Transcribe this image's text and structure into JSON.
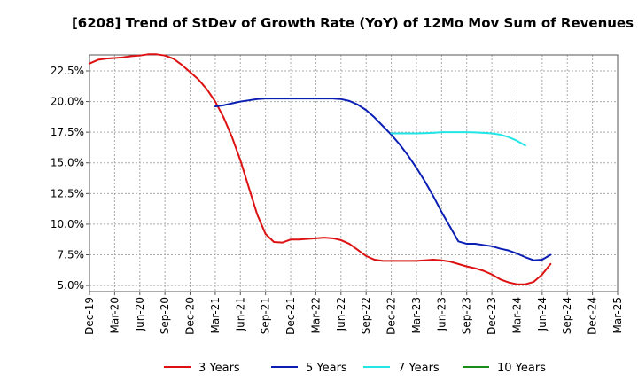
{
  "chart_data": {
    "type": "line",
    "title": "[6208]  Trend of StDev of Growth Rate (YoY) of 12Mo Mov Sum of Revenues",
    "xlabel": "",
    "ylabel": "",
    "ylim": [
      4.5,
      23.8
    ],
    "y_ticks": [
      5.0,
      7.5,
      10.0,
      12.5,
      15.0,
      17.5,
      20.0,
      22.5
    ],
    "y_tick_labels": [
      "5.0%",
      "7.5%",
      "10.0%",
      "12.5%",
      "15.0%",
      "17.5%",
      "20.0%",
      "22.5%"
    ],
    "x_tick_labels": [
      "Dec-19",
      "Mar-20",
      "Jun-20",
      "Sep-20",
      "Dec-20",
      "Mar-21",
      "Jun-21",
      "Sep-21",
      "Dec-21",
      "Mar-22",
      "Jun-22",
      "Sep-22",
      "Dec-22",
      "Mar-23",
      "Jun-23",
      "Sep-23",
      "Dec-23",
      "Mar-24",
      "Jun-24",
      "Sep-24",
      "Dec-24",
      "Mar-25"
    ],
    "grid": true,
    "legend_position": "bottom",
    "series": [
      {
        "name": "3 Years",
        "color": "#dd1111",
        "start_index": 0,
        "values": [
          23.1,
          23.4,
          23.5,
          23.55,
          23.6,
          23.7,
          23.75,
          23.85,
          23.85,
          23.75,
          23.5,
          23.0,
          22.4,
          21.8,
          21.0,
          20.0,
          18.7,
          17.1,
          15.2,
          13.0,
          10.8,
          9.2,
          8.55,
          8.5,
          8.75,
          8.75,
          8.8,
          8.85,
          8.9,
          8.85,
          8.7,
          8.4,
          7.9,
          7.4,
          7.1,
          7.0,
          7.0,
          7.0,
          7.0,
          7.0,
          7.05,
          7.1,
          7.05,
          6.95,
          6.75,
          6.55,
          6.4,
          6.2,
          5.9,
          5.5,
          5.25,
          5.1,
          5.1,
          5.3,
          5.9,
          6.75
        ]
      },
      {
        "name": "5 Years",
        "color": "#0a1eb4",
        "start_index": 15,
        "values": [
          19.6,
          19.7,
          19.85,
          20.0,
          20.1,
          20.2,
          20.25,
          20.25,
          20.25,
          20.25,
          20.25,
          20.25,
          20.25,
          20.25,
          20.25,
          20.2,
          20.05,
          19.75,
          19.3,
          18.7,
          18.0,
          17.3,
          16.5,
          15.6,
          14.6,
          13.5,
          12.3,
          11.0,
          9.8,
          8.6,
          8.4,
          8.4,
          8.3,
          8.2,
          8.0,
          7.85,
          7.6,
          7.3,
          7.05,
          7.1,
          7.5
        ]
      },
      {
        "name": "7 Years",
        "color": "#22e5e5",
        "start_index": 36,
        "values": [
          17.4,
          17.4,
          17.4,
          17.4,
          17.42,
          17.45,
          17.5,
          17.5,
          17.5,
          17.5,
          17.48,
          17.45,
          17.4,
          17.3,
          17.1,
          16.8,
          16.4
        ]
      },
      {
        "name": "10 Years",
        "color": "#1a8a1a",
        "start_index": 0,
        "values": []
      }
    ]
  }
}
